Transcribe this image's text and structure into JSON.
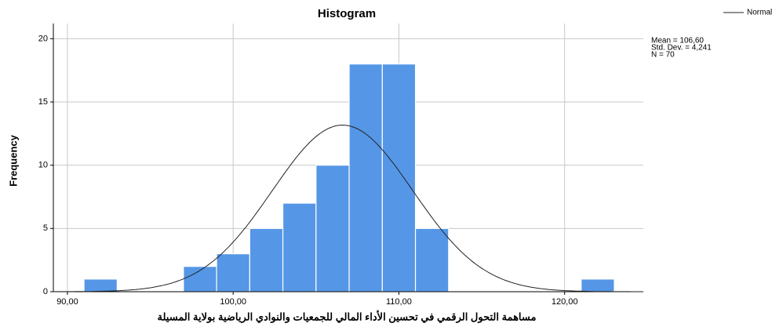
{
  "chart_data": {
    "type": "histogram",
    "title": "Histogram",
    "x_label": "مساهمة التحول الرقمي في تحسين الأداء المالي للجمعيات والنوادي الرياضية بولاية المسيلة",
    "y_label": "Frequency",
    "bins": [
      91,
      93,
      95,
      97,
      99,
      101,
      103,
      105,
      107,
      109,
      111,
      113,
      115,
      117,
      119,
      121,
      123
    ],
    "values": [
      1,
      0,
      0,
      2,
      3,
      5,
      7,
      10,
      18,
      18,
      5,
      0,
      0,
      0,
      0,
      1
    ],
    "color": "#5596e6",
    "xlim": [
      89.15,
      124.75
    ],
    "ylim": [
      0,
      21.2
    ],
    "xticks": [
      {
        "value": 90,
        "label": "90,00"
      },
      {
        "value": 100,
        "label": "100,00"
      },
      {
        "value": 110,
        "label": "110,00"
      },
      {
        "value": 120,
        "label": "120,00"
      }
    ],
    "yticks": [
      0,
      5,
      10,
      15,
      20
    ],
    "grid": true,
    "curve": {
      "name": "Normal",
      "color": "#222222"
    },
    "stats": [
      {
        "value": 106.6,
        "label": "Mean = 106,60"
      },
      {
        "value": 4.241,
        "label": "Std. Dev. = 4,241"
      },
      {
        "value": 70,
        "label": "N = 70"
      }
    ]
  }
}
